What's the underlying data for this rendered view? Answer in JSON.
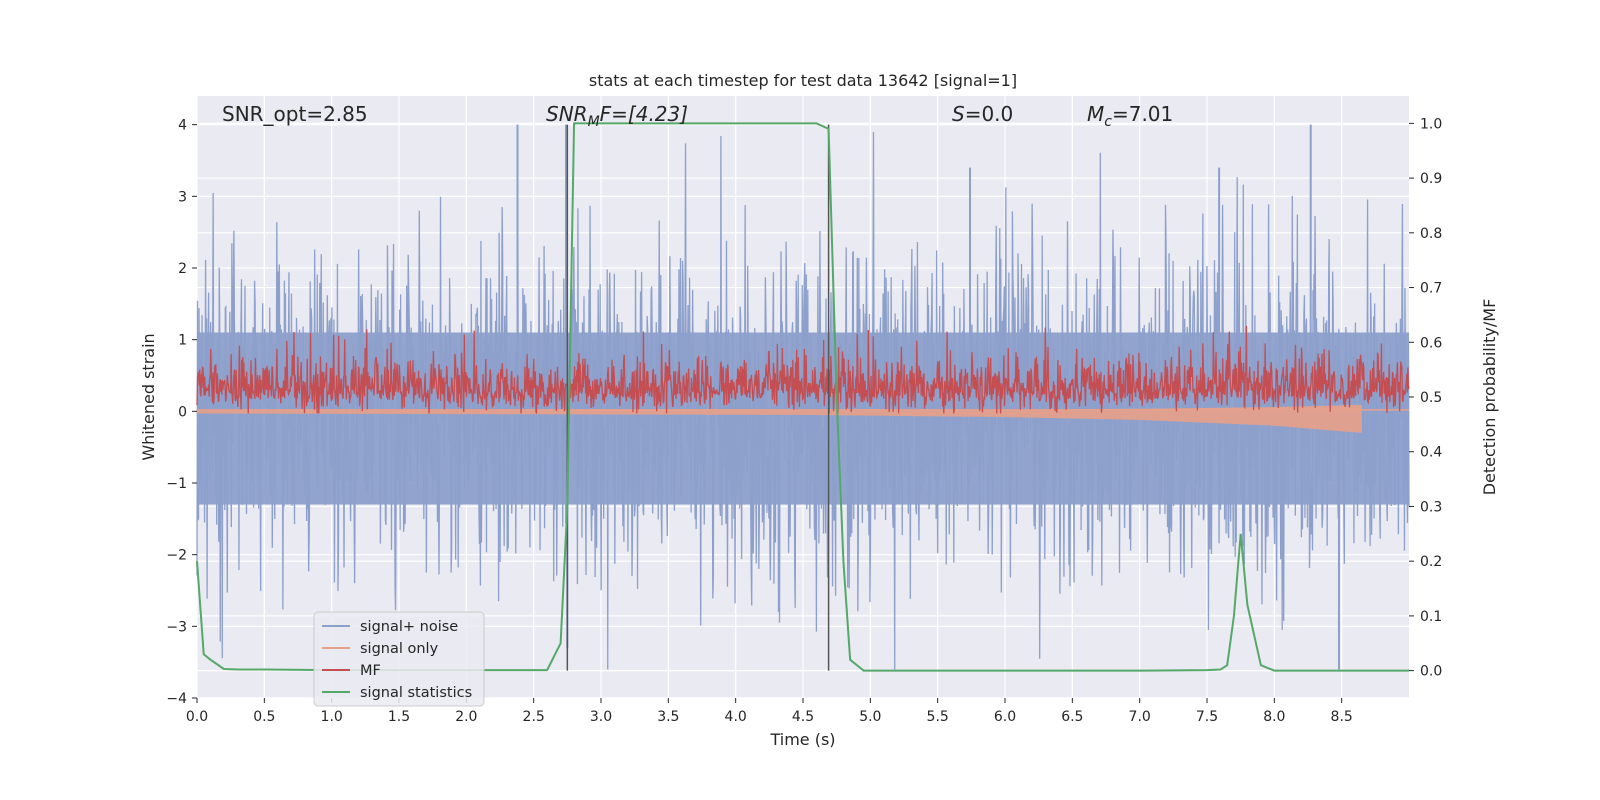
{
  "chart_data": {
    "type": "line",
    "title": "stats at each timestep for test data 13642 [signal=1]",
    "xlabel": "Time (s)",
    "ylabel_left": "Whitened strain",
    "ylabel_right": "Detection probability/MF",
    "xlim": [
      0,
      9.0
    ],
    "ylim_left": [
      -4,
      4.4
    ],
    "ylim_right": [
      -0.05,
      1.05
    ],
    "x_ticks": [
      0.0,
      0.5,
      1.0,
      1.5,
      2.0,
      2.5,
      3.0,
      3.5,
      4.0,
      4.5,
      5.0,
      5.5,
      6.0,
      6.5,
      7.0,
      7.5,
      8.0,
      8.5
    ],
    "x_tick_labels": [
      "0.0",
      "0.5",
      "1.0",
      "1.5",
      "2.0",
      "2.5",
      "3.0",
      "3.5",
      "4.0",
      "4.5",
      "5.0",
      "5.5",
      "6.0",
      "6.5",
      "7.0",
      "7.5",
      "8.0",
      "8.5"
    ],
    "y_left_ticks": [
      -4,
      -3,
      -2,
      -1,
      0,
      1,
      2,
      3,
      4
    ],
    "y_left_tick_labels": [
      "−4",
      "−3",
      "−2",
      "−1",
      "0",
      "1",
      "2",
      "3",
      "4"
    ],
    "y_right_ticks": [
      0.0,
      0.1,
      0.2,
      0.3,
      0.4,
      0.5,
      0.6,
      0.7,
      0.8,
      0.9,
      1.0
    ],
    "y_right_tick_labels": [
      "0.0",
      "0.1",
      "0.2",
      "0.3",
      "0.4",
      "0.5",
      "0.6",
      "0.7",
      "0.8",
      "0.9",
      "1.0"
    ],
    "grid": true,
    "legend_position": "lower-left",
    "annotations": {
      "snr_opt": "SNR_opt=2.85",
      "snr_mf_base": "SNR",
      "snr_mf_sub": "M",
      "snr_mf_rest": "F=[4.23]",
      "s_label": "S",
      "s_rest": "=0.0",
      "mc_base": "M",
      "mc_sub": "c",
      "mc_rest": "=7.01"
    },
    "vlines": [
      2.75,
      4.69
    ],
    "series": [
      {
        "name": "signal+ noise",
        "axis": "left",
        "color": "#8da0cb",
        "style": "dense-noise",
        "amplitude_approx": 2.5,
        "peak_values": [
          4.0,
          4.0,
          -3.5,
          -3.6
        ]
      },
      {
        "name": "signal only",
        "axis": "left",
        "color": "#e8a08a",
        "style": "chirp",
        "x_end": 8.65,
        "envelope": [
          [
            0,
            0.03
          ],
          [
            4.5,
            0.05
          ],
          [
            6.0,
            0.08
          ],
          [
            7.0,
            0.12
          ],
          [
            8.0,
            0.2
          ],
          [
            8.5,
            0.28
          ],
          [
            8.65,
            0.3
          ]
        ]
      },
      {
        "name": "MF",
        "axis": "right",
        "color": "#c44e52",
        "style": "noise-band",
        "baseline": 0.5,
        "low": 0.47,
        "high_typical": 0.57,
        "high_max": 0.63
      },
      {
        "name": "signal statistics",
        "axis": "right",
        "color": "#55a868",
        "style": "line",
        "x": [
          0.0,
          0.05,
          0.1,
          0.2,
          0.3,
          0.5,
          1.0,
          2.0,
          2.6,
          2.7,
          2.75,
          2.8,
          2.9,
          3.5,
          4.0,
          4.5,
          4.6,
          4.69,
          4.75,
          4.8,
          4.85,
          4.95,
          5.5,
          6.0,
          7.0,
          7.5,
          7.6,
          7.65,
          7.7,
          7.75,
          7.8,
          7.9,
          8.0,
          8.5,
          9.0
        ],
        "y": [
          0.2,
          0.03,
          0.02,
          0.003,
          0.002,
          0.002,
          0.001,
          0.001,
          0.001,
          0.05,
          0.3,
          1.0,
          1.0,
          1.0,
          1.0,
          1.0,
          1.0,
          0.99,
          0.5,
          0.2,
          0.02,
          0.0,
          0.0,
          0.0,
          0.0,
          0.001,
          0.002,
          0.01,
          0.1,
          0.25,
          0.12,
          0.01,
          0.0,
          0.0,
          0.0
        ]
      }
    ]
  }
}
